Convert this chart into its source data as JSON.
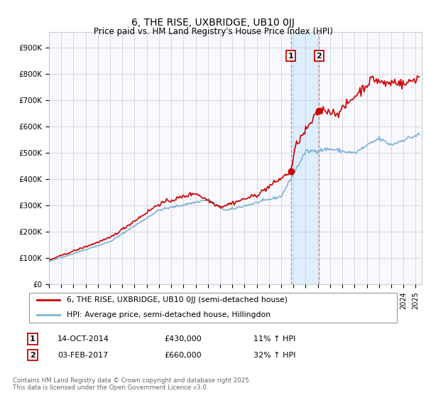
{
  "title": "6, THE RISE, UXBRIDGE, UB10 0JJ",
  "subtitle": "Price paid vs. HM Land Registry's House Price Index (HPI)",
  "ylabel_ticks": [
    "£0",
    "£100K",
    "£200K",
    "£300K",
    "£400K",
    "£500K",
    "£600K",
    "£700K",
    "£800K",
    "£900K"
  ],
  "ytick_values": [
    0,
    100000,
    200000,
    300000,
    400000,
    500000,
    600000,
    700000,
    800000,
    900000
  ],
  "ylim": [
    0,
    960000
  ],
  "xlim_left": 1995.0,
  "xlim_right": 2025.5,
  "legend_line1": "6, THE RISE, UXBRIDGE, UB10 0JJ (semi-detached house)",
  "legend_line2": "HPI: Average price, semi-detached house, Hillingdon",
  "annotation1_date": "14-OCT-2014",
  "annotation1_price": "£430,000",
  "annotation1_hpi": "11% ↑ HPI",
  "annotation2_date": "03-FEB-2017",
  "annotation2_price": "£660,000",
  "annotation2_hpi": "32% ↑ HPI",
  "footer": "Contains HM Land Registry data © Crown copyright and database right 2025.\nThis data is licensed under the Open Government Licence v3.0.",
  "red_color": "#cc0000",
  "blue_color": "#7fb3d3",
  "shade_color": "#ddeeff",
  "annotation_box_color": "#cc0000",
  "vline_color": "#e08080",
  "point1_x": 2014.79,
  "point1_y": 430000,
  "point2_x": 2017.09,
  "point2_y": 660000,
  "bg_color": "#f8f8ff",
  "grid_color": "#cccccc"
}
